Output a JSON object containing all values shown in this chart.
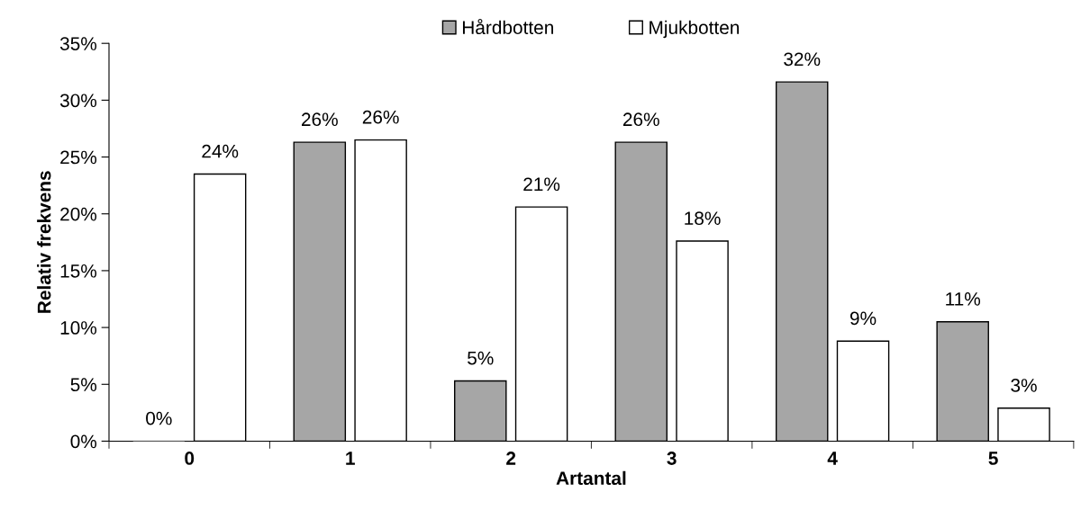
{
  "chart_data": {
    "type": "bar",
    "xlabel": "Artantal",
    "ylabel": "Relativ frekvens",
    "categories": [
      "0",
      "1",
      "2",
      "3",
      "4",
      "5"
    ],
    "series": [
      {
        "name": "Hårdbotten",
        "color": "#a6a6a6",
        "values": [
          0,
          26.3,
          5.3,
          26.3,
          31.6,
          10.5
        ],
        "value_labels": [
          "0%",
          "26%",
          "5%",
          "26%",
          "32%",
          "11%"
        ]
      },
      {
        "name": "Mjukbotten",
        "color": "#ffffff",
        "values": [
          23.5,
          26.5,
          20.6,
          17.6,
          8.8,
          2.9
        ],
        "value_labels": [
          "24%",
          "26%",
          "21%",
          "18%",
          "9%",
          "3%"
        ]
      }
    ],
    "ylim": [
      0,
      35
    ],
    "yticks": [
      {
        "value": 0,
        "label": "0%"
      },
      {
        "value": 5,
        "label": "5%"
      },
      {
        "value": 10,
        "label": "10%"
      },
      {
        "value": 15,
        "label": "15%"
      },
      {
        "value": 20,
        "label": "20%"
      },
      {
        "value": 25,
        "label": "25%"
      },
      {
        "value": 30,
        "label": "30%"
      },
      {
        "value": 35,
        "label": "35%"
      }
    ],
    "grid": false,
    "legend": "top"
  }
}
